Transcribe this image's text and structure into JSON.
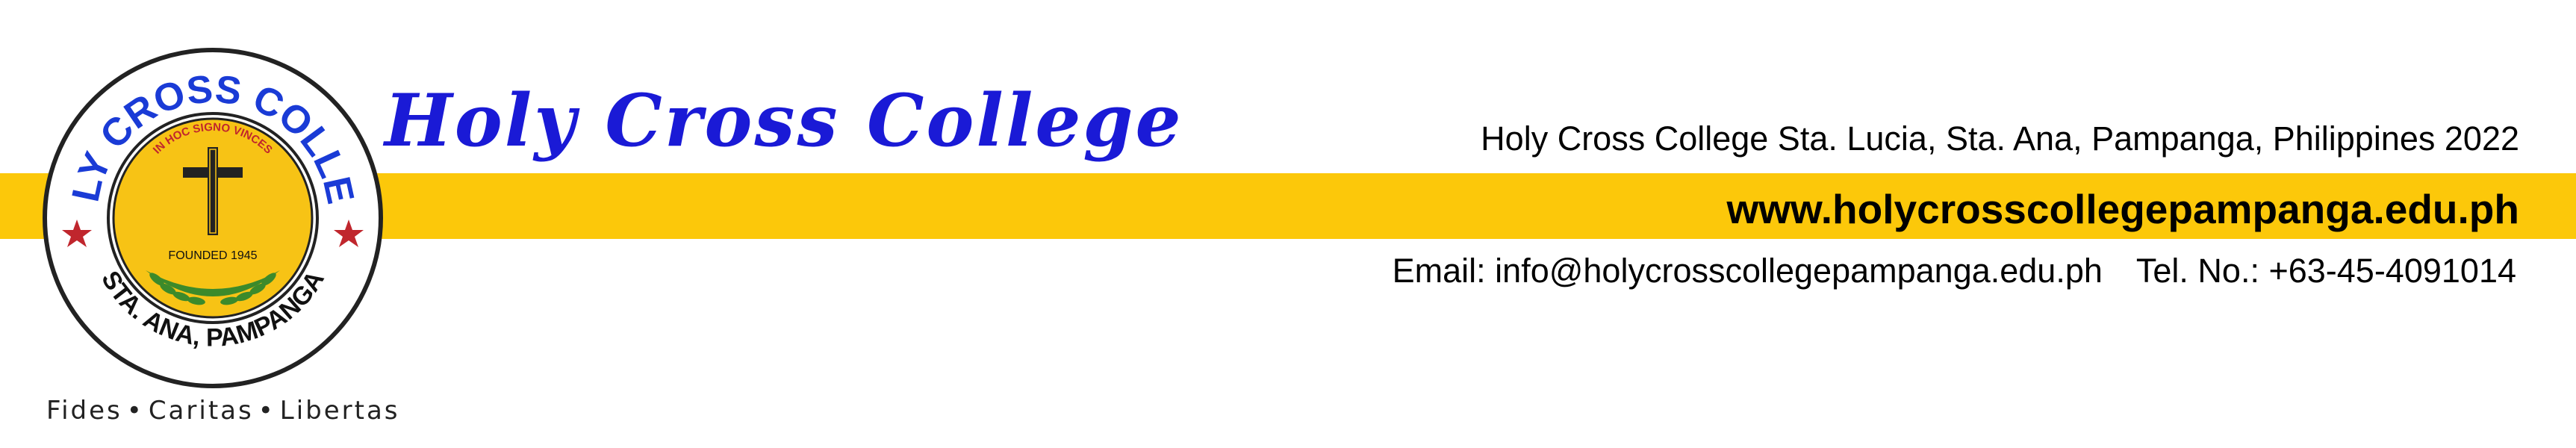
{
  "logo": {
    "top_text": "HOLY CROSS COLLEGE",
    "bottom_text": "STA. ANA, PAMPANGA",
    "inner_text": "IN HOC SIGNO VINCES",
    "founded": "FOUNDED 1945",
    "motto": [
      "Fides",
      "Caritas",
      "Libertas"
    ],
    "colors": {
      "blue": "#1a3bd6",
      "gold": "#f7c315",
      "red": "#c0262d",
      "green": "#3c8a2b"
    }
  },
  "header": {
    "college_name": "Holy Cross College",
    "address": "Holy Cross College Sta. Lucia, Sta. Ana, Pampanga, Philippines 2022",
    "website": "www.holycrosscollegepampanga.edu.ph",
    "email": "Email: info@holycrosscollegepampanga.edu.ph",
    "phone": "Tel. No.: +63-45-4091014"
  },
  "colors": {
    "band": "#fcc80a",
    "title": "#1a1ad6"
  }
}
